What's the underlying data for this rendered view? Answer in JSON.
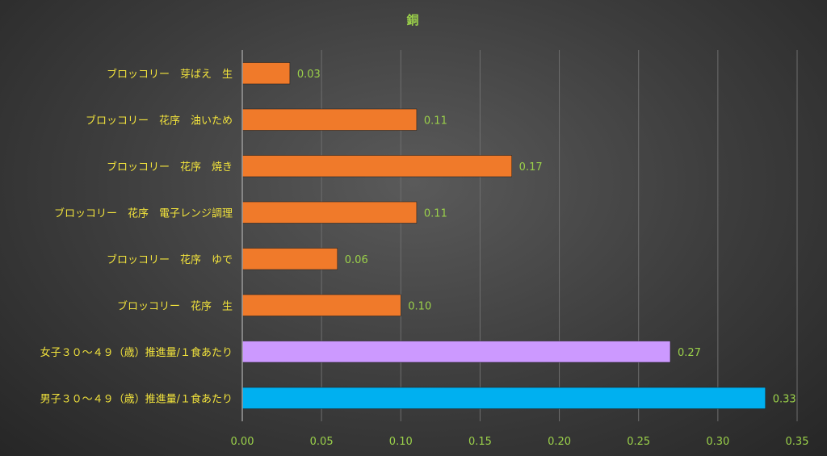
{
  "chart_data": {
    "type": "bar",
    "orientation": "horizontal",
    "title": "銅",
    "xlabel": "",
    "ylabel": "",
    "xlim": [
      0,
      0.35
    ],
    "ticks": [
      "0.00",
      "0.05",
      "0.10",
      "0.15",
      "0.20",
      "0.25",
      "0.30",
      "0.35"
    ],
    "grid": true,
    "categories": [
      "ブロッコリー　芽ばえ　生",
      "ブロッコリー　花序　油いため",
      "ブロッコリー　花序　焼き",
      "ブロッコリー　花序　電子レンジ調理",
      "ブロッコリー　花序　ゆで",
      "ブロッコリー　花序　生",
      "女子３０～４９（歳）推進量/１食あたり",
      "男子３０～４９（歳）推進量/１食あたり"
    ],
    "values": [
      0.03,
      0.11,
      0.17,
      0.11,
      0.06,
      0.1,
      0.27,
      0.33
    ],
    "value_labels": [
      "0.03",
      "0.11",
      "0.17",
      "0.11",
      "0.06",
      "0.10",
      "0.27",
      "0.33"
    ],
    "colors": [
      "#f07a2a",
      "#f07a2a",
      "#f07a2a",
      "#f07a2a",
      "#f07a2a",
      "#f07a2a",
      "#cc99ff",
      "#00b0f0"
    ]
  }
}
